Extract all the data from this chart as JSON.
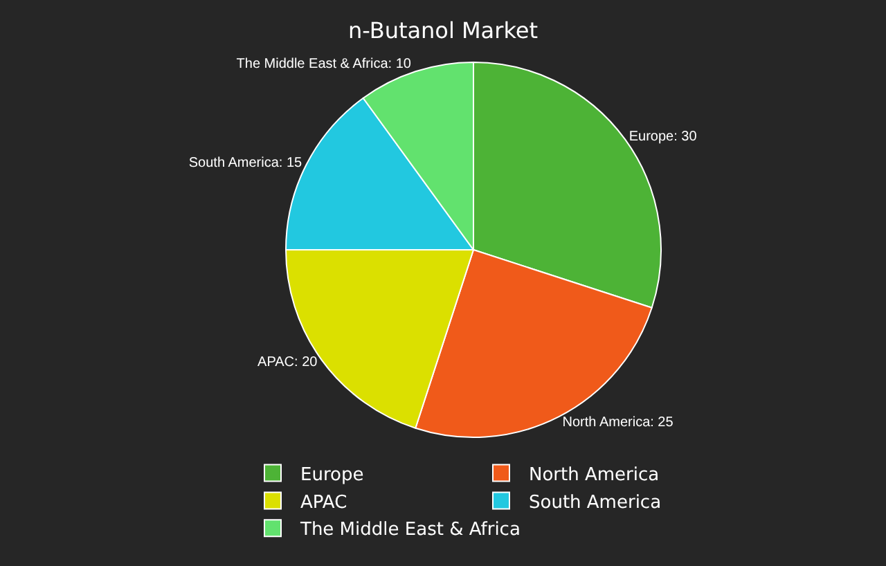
{
  "chart_data": {
    "type": "pie",
    "title": "n-Butanol Market",
    "categories": [
      "Europe",
      "North America",
      "APAC",
      "South America",
      "The Middle East & Africa"
    ],
    "values": [
      30,
      25,
      20,
      15,
      10
    ],
    "value_labels": [
      "Europe: 30",
      "North America: 25",
      "APAC: 20",
      "South America: 15",
      "The Middle East & Africa: 10"
    ],
    "colors": [
      "#4db336",
      "#f05a1a",
      "#dbe000",
      "#22c8e0",
      "#62e26e"
    ],
    "legend": "bottom"
  }
}
